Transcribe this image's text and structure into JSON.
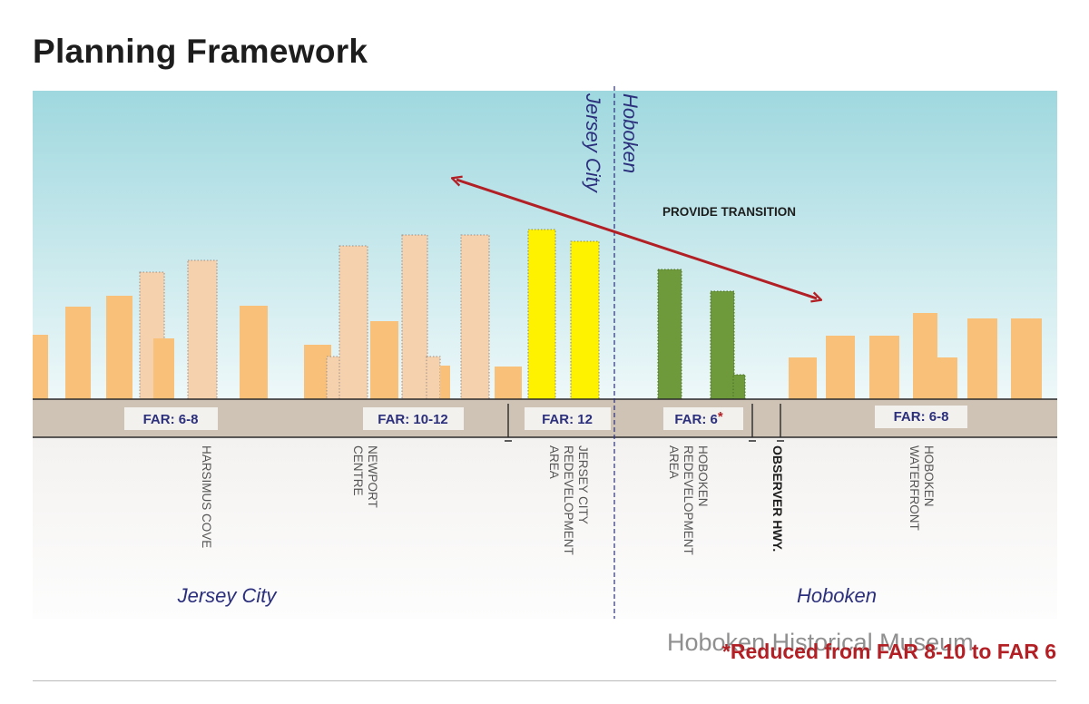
{
  "title": "Planning Framework",
  "colors": {
    "sky_top": "#9fd8df",
    "sky_bottom": "#eef8f9",
    "existing_building": "#f8c078",
    "proposed_building": "#f5d1ae",
    "jersey_city_redevelopment": "#fff200",
    "hoboken_redevelopment": "#6e9a3c",
    "ground": "#cfc3b6",
    "arrow": "#b21f24",
    "city_label": "#2b2f7c",
    "footnote_mark": "#b21f24"
  },
  "boundary": {
    "left_label": "Jersey City",
    "right_label": "Hoboken"
  },
  "arrow_label": "PROVIDE TRANSITION",
  "far_labels": [
    {
      "text": "FAR: 6-8"
    },
    {
      "text": "FAR: 10-12"
    },
    {
      "text": "FAR: 12"
    },
    {
      "text": "FAR: 6",
      "mark": "*"
    },
    {
      "text": "FAR: 6-8"
    }
  ],
  "districts": [
    {
      "lines": [
        "HARSIMUS COVE"
      ]
    },
    {
      "lines": [
        "NEWPORT",
        "CENTRE"
      ]
    },
    {
      "lines": [
        "JERSEY CITY",
        "REDEVELOPMENT",
        "AREA"
      ]
    },
    {
      "lines": [
        "HOBOKEN",
        "REDEVELOPMENT",
        "AREA"
      ]
    },
    {
      "lines": [
        "OBSERVER HWY."
      ]
    },
    {
      "lines": [
        "HOBOKEN",
        "WATERFRONT"
      ]
    }
  ],
  "city_labels": {
    "left": "Jersey City",
    "right": "Hoboken"
  },
  "footnote": "*Reduced from FAR 8-10 to FAR 6",
  "watermark": "Hoboken Historical Museum"
}
